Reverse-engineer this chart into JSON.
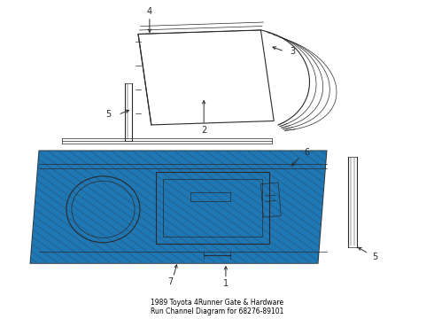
{
  "title": "1989 Toyota 4Runner Gate & Hardware\nRun Channel Diagram for 68276-89101",
  "background_color": "#ffffff",
  "line_color": "#2a2a2a",
  "label_color": "#000000",
  "figsize": [
    4.9,
    3.6
  ],
  "dpi": 100
}
